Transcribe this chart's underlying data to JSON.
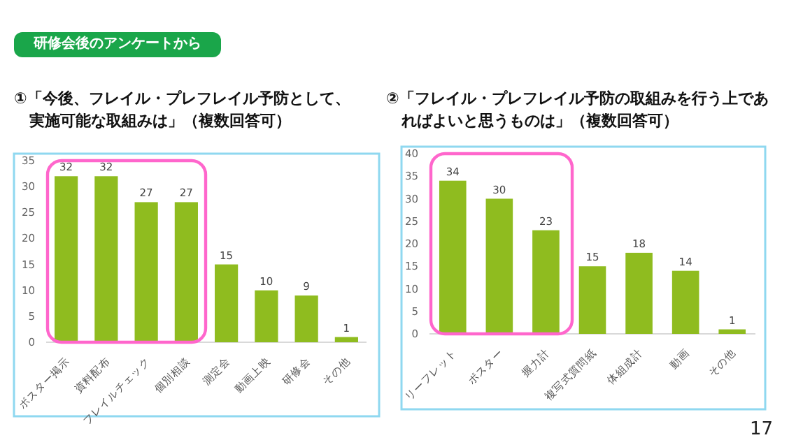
{
  "chart_data": [
    {
      "type": "bar",
      "title": "①「今後、フレイル・プレフレイル予防として、実施可能な取組みは」（複数回答可）",
      "annotations": [
        "研修会後のアンケートから"
      ],
      "categories": [
        "ポスター掲示",
        "資料配布",
        "フレイルチェック",
        "個別相談",
        "測定会",
        "動画上映",
        "研修会",
        "その他"
      ],
      "series": [
        {
          "color": "#8fbc1f",
          "values": [
            32,
            32,
            27,
            27,
            15,
            10,
            9,
            1
          ]
        }
      ],
      "ylim": [
        0,
        35
      ],
      "yticks": [
        0,
        5,
        10,
        15,
        20,
        25,
        30,
        35
      ],
      "data_labels": true,
      "grid": false
    },
    {
      "type": "bar",
      "title": "②「フレイル・プレフレイル予防の取組みを行う上であればよいと思うものは」（複数回答可）",
      "annotations": [
        "17"
      ],
      "categories": [
        "リーフレット",
        "ポスター",
        "握力計",
        "複写式質問紙",
        "体組成計",
        "動画",
        "その他"
      ],
      "series": [
        {
          "color": "#8fbc1f",
          "values": [
            34,
            30,
            23,
            15,
            18,
            14,
            1
          ]
        }
      ],
      "ylim": [
        0,
        40
      ],
      "yticks": [
        0,
        5,
        10,
        15,
        20,
        25,
        30,
        35,
        40
      ],
      "data_labels": true,
      "grid": false
    }
  ]
}
